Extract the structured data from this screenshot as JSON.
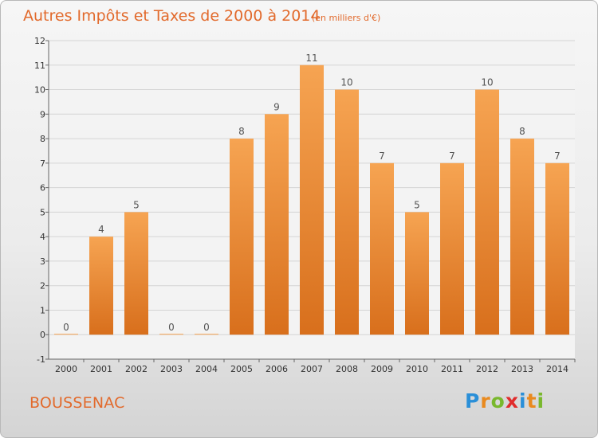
{
  "chart_data": {
    "type": "bar",
    "title": "Autres Impôts et Taxes de 2000 à 2014",
    "unit_note": "(en milliers d'€)",
    "categories": [
      "2000",
      "2001",
      "2002",
      "2003",
      "2004",
      "2005",
      "2006",
      "2007",
      "2008",
      "2009",
      "2010",
      "2011",
      "2012",
      "2013",
      "2014"
    ],
    "values": [
      0,
      4,
      5,
      0,
      0,
      8,
      9,
      11,
      10,
      7,
      5,
      7,
      10,
      8,
      7
    ],
    "value_labels": [
      "0",
      "4",
      "5",
      "0",
      "0",
      "8",
      "9",
      "11",
      "10",
      "7",
      "5",
      "7",
      "10",
      "8",
      "7"
    ],
    "ylim": [
      -1,
      12
    ],
    "yticks": [
      "-1",
      "0",
      "1",
      "2",
      "3",
      "4",
      "5",
      "6",
      "7",
      "8",
      "9",
      "10",
      "11",
      "12"
    ],
    "grid": true,
    "bar_color_top": "#f6a452",
    "bar_color_bottom": "#d86f1c"
  },
  "commune": "BOUSSENAC",
  "logo": {
    "letters": [
      "P",
      "r",
      "o",
      "x",
      "i",
      "t",
      "i"
    ],
    "colors": [
      "#2a8fd8",
      "#e98a1f",
      "#79b82d",
      "#e02c2c",
      "#2a8fd8",
      "#e98a1f",
      "#79b82d"
    ]
  }
}
